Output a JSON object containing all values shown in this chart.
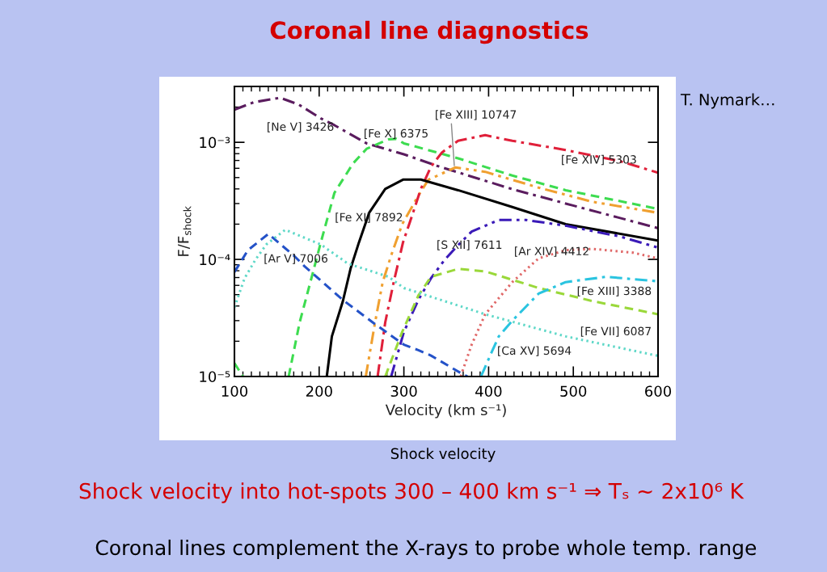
{
  "chart_data": {
    "type": "line",
    "title": "Coronal line diagnostics",
    "xlabel": "Velocity (km s⁻¹)",
    "ylabel": "F/F$_{shock}$",
    "log": "y",
    "xlim": [
      100,
      600
    ],
    "xticks": [
      100,
      200,
      300,
      400,
      500,
      600
    ],
    "ylim": [
      1e-05,
      0.003
    ],
    "yticks": [
      {
        "value": 1e-05,
        "label": "10⁻⁵"
      },
      {
        "value": 0.0001,
        "label": "10⁻⁴"
      },
      {
        "value": 0.001,
        "label": "10⁻³"
      }
    ],
    "series": [
      {
        "name": "[Ne V] 3426",
        "color": "#5a1c5e",
        "line_style": "dashdot",
        "x": [
          100,
          123,
          154,
          176,
          202,
          218,
          256,
          300,
          339,
          427,
          491,
          600
        ],
        "values": [
          0.0019,
          0.0022,
          0.0024,
          0.0021,
          0.0016,
          0.0014,
          0.00098,
          0.00079,
          0.00063,
          0.0004,
          0.0003,
          0.000185
        ]
      },
      {
        "name": "[Fe X] 6375",
        "color": "#3ddc50",
        "line_style": "dashed",
        "x": [
          100,
          110,
          130,
          164,
          177,
          193,
          202,
          218,
          240,
          256,
          282,
          291,
          300,
          364,
          428,
          491,
          600
        ],
        "values": [
          1.3e-05,
          1e-05,
          null,
          1e-05,
          2.9e-05,
          7.9e-05,
          0.00014,
          0.00037,
          0.00066,
          0.00088,
          0.00106,
          0.00107,
          0.00098,
          0.00073,
          0.00052,
          0.00039,
          0.00027
        ]
      },
      {
        "name": "[Fe XIII] 10747",
        "color": "#f0a030",
        "line_style": "dashdotdot",
        "x": [
          255,
          266,
          275,
          285,
          298,
          317,
          329,
          361,
          396,
          459,
          523,
          600
        ],
        "values": [
          1e-05,
          2.9e-05,
          6.4e-05,
          0.000108,
          0.0002,
          0.00035,
          0.00048,
          0.00061,
          0.00056,
          0.00041,
          0.00031,
          0.00025
        ]
      },
      {
        "name": "[Fe XIV] 5303",
        "color": "#e0203a",
        "line_style": "dashdot",
        "x": [
          269,
          278,
          288,
          299,
          310,
          320,
          332,
          345,
          364,
          396,
          428,
          491,
          555,
          600
        ],
        "values": [
          1e-05,
          2.9e-05,
          6.4e-05,
          0.00014,
          0.00024,
          0.0004,
          0.00062,
          0.00082,
          0.00103,
          0.00115,
          0.00103,
          0.00086,
          0.00069,
          0.00055
        ]
      },
      {
        "name": "[Fe XI] 7892",
        "color": "#000000",
        "line_style": "solid",
        "x": [
          209,
          215,
          228,
          237,
          247,
          259,
          278,
          299,
          320,
          364,
          428,
          491,
          600
        ],
        "values": [
          1e-05,
          2.2e-05,
          4.4e-05,
          8.3e-05,
          0.00014,
          0.00025,
          0.0004,
          0.00048,
          0.00048,
          0.00039,
          0.00028,
          0.0002,
          0.000145
        ]
      },
      {
        "name": "[S XII] 7611",
        "color": "#3a1ab8",
        "line_style": "dashdotdot",
        "x": [
          285,
          300,
          317,
          332,
          348,
          363,
          380,
          412,
          444,
          491,
          555,
          600
        ],
        "values": [
          1e-05,
          2.4e-05,
          4.5e-05,
          6.9e-05,
          9.9e-05,
          0.00013,
          0.000173,
          0.000217,
          0.000217,
          0.000194,
          0.000157,
          0.000126
        ]
      },
      {
        "name": "[Ar V] 7006",
        "color": "#2452c8",
        "line_style": "dashed",
        "x": [
          100,
          116,
          140,
          170,
          183,
          228,
          266,
          300,
          317,
          332,
          370,
          375
        ],
        "values": [
          7.8e-05,
          0.00012,
          0.000165,
          0.000108,
          8.7e-05,
          4.5e-05,
          2.8e-05,
          1.87e-05,
          1.68e-05,
          1.51e-05,
          1.04e-05,
          1e-05
        ]
      },
      {
        "name": "[Ar XIV] 4412",
        "color": "#e06868",
        "line_style": "dotted",
        "x": [
          367,
          380,
          396,
          428,
          459,
          491,
          523,
          571,
          600
        ],
        "values": [
          1e-05,
          1.87e-05,
          3.4e-05,
          6.4e-05,
          0.000102,
          0.00012,
          0.000123,
          0.000114,
          0.000102
        ]
      },
      {
        "name": "[Fe XIII] 3388",
        "color": "#9ad83a",
        "line_style": "dashed",
        "x": [
          278,
          298,
          317,
          332,
          364,
          396,
          459,
          523,
          600
        ],
        "values": [
          1e-05,
          2.4e-05,
          4.9e-05,
          7.1e-05,
          8.3e-05,
          7.9e-05,
          5.7e-05,
          4.4e-05,
          3.4e-05
        ]
      },
      {
        "name": "[Fe VII] 6087",
        "color": "#5fd8c8",
        "line_style": "dotted",
        "x": [
          100,
          112,
          125,
          138,
          160,
          202,
          234,
          282,
          300,
          396,
          491,
          600
        ],
        "values": [
          3.9e-05,
          6.9e-05,
          0.0001,
          0.000135,
          0.000179,
          0.000134,
          9.2e-05,
          7.1e-05,
          5.7e-05,
          3.4e-05,
          2.2e-05,
          1.5e-05
        ]
      },
      {
        "name": "[Ca XV] 5694",
        "color": "#2ac4e0",
        "line_style": "dashdot",
        "x": [
          391,
          405,
          412,
          428,
          459,
          491,
          539,
          600
        ],
        "values": [
          1e-05,
          1.7e-05,
          2.2e-05,
          3e-05,
          5.1e-05,
          6.4e-05,
          7.1e-05,
          6.5e-05
        ]
      }
    ],
    "annotations": [
      "T. Nymark…",
      "Shock velocity",
      "Shock velocity into hot-spots 300 – 400 km s⁻¹ ⇒ Tₛ ~ 2x10⁶ K",
      "Coronal lines complement the X-rays to probe whole temp. range"
    ]
  }
}
